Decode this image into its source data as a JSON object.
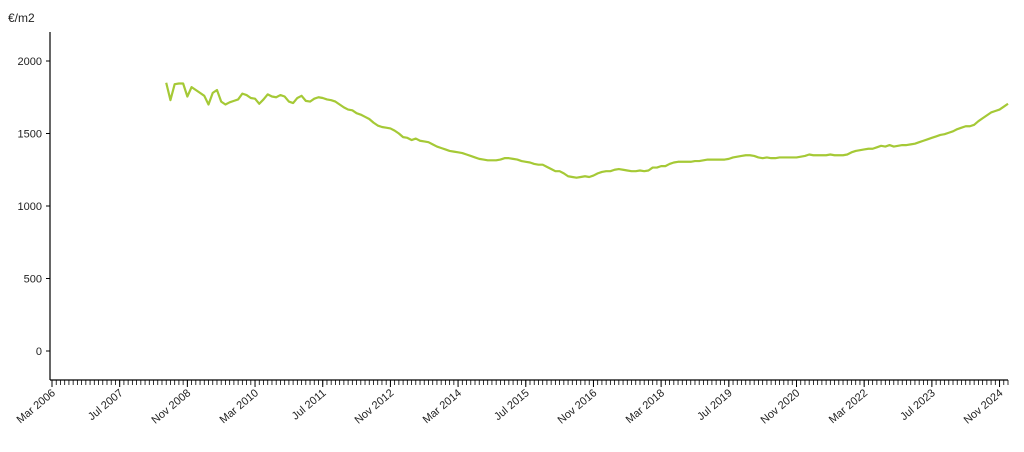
{
  "chart_data": {
    "type": "line",
    "y_label": "€/m2",
    "x": [
      "2008-06",
      "2008-07",
      "2008-08",
      "2008-09",
      "2008-10",
      "2008-11",
      "2008-12",
      "2009-01",
      "2009-02",
      "2009-03",
      "2009-04",
      "2009-05",
      "2009-06",
      "2009-07",
      "2009-08",
      "2009-09",
      "2009-10",
      "2009-11",
      "2009-12",
      "2010-01",
      "2010-02",
      "2010-03",
      "2010-04",
      "2010-05",
      "2010-06",
      "2010-07",
      "2010-08",
      "2010-09",
      "2010-10",
      "2010-11",
      "2010-12",
      "2011-01",
      "2011-02",
      "2011-03",
      "2011-04",
      "2011-05",
      "2011-06",
      "2011-07",
      "2011-08",
      "2011-09",
      "2011-10",
      "2011-11",
      "2011-12",
      "2012-01",
      "2012-02",
      "2012-03",
      "2012-04",
      "2012-05",
      "2012-06",
      "2012-07",
      "2012-08",
      "2012-09",
      "2012-10",
      "2012-11",
      "2012-12",
      "2013-01",
      "2013-02",
      "2013-03",
      "2013-04",
      "2013-05",
      "2013-06",
      "2013-07",
      "2013-08",
      "2013-09",
      "2013-10",
      "2013-11",
      "2013-12",
      "2014-01",
      "2014-02",
      "2014-03",
      "2014-04",
      "2014-05",
      "2014-06",
      "2014-07",
      "2014-08",
      "2014-09",
      "2014-10",
      "2014-11",
      "2014-12",
      "2015-01",
      "2015-02",
      "2015-03",
      "2015-04",
      "2015-05",
      "2015-06",
      "2015-07",
      "2015-08",
      "2015-09",
      "2015-10",
      "2015-11",
      "2015-12",
      "2016-01",
      "2016-02",
      "2016-03",
      "2016-04",
      "2016-05",
      "2016-06",
      "2016-07",
      "2016-08",
      "2016-09",
      "2016-10",
      "2016-11",
      "2016-12",
      "2017-01",
      "2017-02",
      "2017-03",
      "2017-04",
      "2017-05",
      "2017-06",
      "2017-07",
      "2017-08",
      "2017-09",
      "2017-10",
      "2017-11",
      "2017-12",
      "2018-01",
      "2018-02",
      "2018-03",
      "2018-04",
      "2018-05",
      "2018-06",
      "2018-07",
      "2018-08",
      "2018-09",
      "2018-10",
      "2018-11",
      "2018-12",
      "2019-01",
      "2019-02",
      "2019-03",
      "2019-04",
      "2019-05",
      "2019-06",
      "2019-07",
      "2019-08",
      "2019-09",
      "2019-10",
      "2019-11",
      "2019-12",
      "2020-01",
      "2020-02",
      "2020-03",
      "2020-04",
      "2020-05",
      "2020-06",
      "2020-07",
      "2020-08",
      "2020-09",
      "2020-10",
      "2020-11",
      "2020-12",
      "2021-01",
      "2021-02",
      "2021-03",
      "2021-04",
      "2021-05",
      "2021-06",
      "2021-07",
      "2021-08",
      "2021-09",
      "2021-10",
      "2021-11",
      "2021-12",
      "2022-01",
      "2022-02",
      "2022-03",
      "2022-04",
      "2022-05",
      "2022-06",
      "2022-07",
      "2022-08",
      "2022-09",
      "2022-10",
      "2022-11",
      "2022-12",
      "2023-01",
      "2023-02",
      "2023-03",
      "2023-04",
      "2023-05",
      "2023-06",
      "2023-07",
      "2023-08",
      "2023-09",
      "2023-10",
      "2023-11",
      "2023-12",
      "2024-01",
      "2024-02",
      "2024-03",
      "2024-04",
      "2024-05",
      "2024-06",
      "2024-07",
      "2024-08",
      "2024-09",
      "2024-10",
      "2024-11",
      "2024-12",
      "2025-01"
    ],
    "series": [
      {
        "color": "#a5c936",
        "values": [
          1850,
          1730,
          1840,
          1845,
          1845,
          1755,
          1820,
          1800,
          1780,
          1760,
          1700,
          1780,
          1800,
          1720,
          1700,
          1715,
          1725,
          1735,
          1775,
          1765,
          1745,
          1740,
          1705,
          1735,
          1770,
          1755,
          1750,
          1765,
          1755,
          1720,
          1710,
          1745,
          1760,
          1725,
          1720,
          1740,
          1750,
          1745,
          1735,
          1730,
          1720,
          1700,
          1680,
          1665,
          1660,
          1640,
          1630,
          1615,
          1600,
          1575,
          1555,
          1545,
          1540,
          1535,
          1520,
          1500,
          1475,
          1470,
          1455,
          1465,
          1450,
          1445,
          1440,
          1425,
          1410,
          1400,
          1390,
          1380,
          1375,
          1370,
          1365,
          1355,
          1345,
          1335,
          1325,
          1320,
          1315,
          1315,
          1315,
          1320,
          1330,
          1330,
          1325,
          1320,
          1310,
          1305,
          1300,
          1290,
          1285,
          1285,
          1270,
          1255,
          1240,
          1240,
          1225,
          1205,
          1200,
          1195,
          1200,
          1205,
          1200,
          1210,
          1225,
          1235,
          1240,
          1240,
          1250,
          1255,
          1250,
          1245,
          1240,
          1240,
          1245,
          1240,
          1245,
          1265,
          1265,
          1275,
          1275,
          1290,
          1300,
          1305,
          1305,
          1305,
          1305,
          1310,
          1310,
          1315,
          1320,
          1320,
          1320,
          1320,
          1320,
          1325,
          1335,
          1340,
          1345,
          1350,
          1350,
          1345,
          1335,
          1330,
          1335,
          1330,
          1330,
          1335,
          1335,
          1335,
          1335,
          1335,
          1340,
          1345,
          1355,
          1350,
          1350,
          1350,
          1350,
          1355,
          1350,
          1350,
          1350,
          1355,
          1370,
          1380,
          1385,
          1390,
          1395,
          1395,
          1405,
          1415,
          1410,
          1420,
          1410,
          1415,
          1420,
          1420,
          1425,
          1430,
          1440,
          1450,
          1460,
          1470,
          1480,
          1490,
          1495,
          1505,
          1515,
          1530,
          1540,
          1550,
          1550,
          1560,
          1585,
          1605,
          1625,
          1645,
          1655,
          1665,
          1685,
          1705
        ]
      }
    ],
    "xlim": [
      "2006-03",
      "2025-01"
    ],
    "xticks": [
      {
        "value": "2006-03",
        "label": "Mar 2006"
      },
      {
        "value": "2007-07",
        "label": "Jul 2007"
      },
      {
        "value": "2008-11",
        "label": "Nov 2008"
      },
      {
        "value": "2010-03",
        "label": "Mar 2010"
      },
      {
        "value": "2011-07",
        "label": "Jul 2011"
      },
      {
        "value": "2012-11",
        "label": "Nov 2012"
      },
      {
        "value": "2014-03",
        "label": "Mar 2014"
      },
      {
        "value": "2015-07",
        "label": "Jul 2015"
      },
      {
        "value": "2016-11",
        "label": "Nov 2016"
      },
      {
        "value": "2018-03",
        "label": "Mar 2018"
      },
      {
        "value": "2019-07",
        "label": "Jul 2019"
      },
      {
        "value": "2020-11",
        "label": "Nov 2020"
      },
      {
        "value": "2022-03",
        "label": "Mar 2022"
      },
      {
        "value": "2023-07",
        "label": "Jul 2023"
      },
      {
        "value": "2024-11",
        "label": "Nov 2024"
      }
    ],
    "ylim": [
      -200,
      2200
    ],
    "yticks": [
      0,
      500,
      1000,
      1500,
      2000
    ],
    "grid": false
  }
}
